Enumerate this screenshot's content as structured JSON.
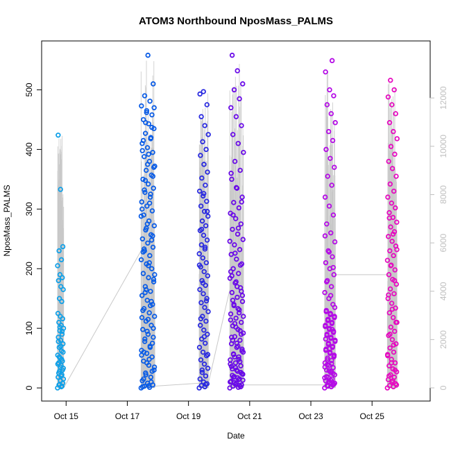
{
  "chart_data": {
    "type": "scatter",
    "title": "ATOM3 Northbound NposMass_PALMS",
    "xlabel": "Date",
    "ylabel": "NposMass_PALMS",
    "x_ticks": [
      "Oct 15",
      "Oct 17",
      "Oct 19",
      "Oct 21",
      "Oct 23",
      "Oct 25"
    ],
    "x_tick_days": [
      15,
      17,
      19,
      21,
      23,
      25
    ],
    "xlim": [
      14.2,
      26.9
    ],
    "ylim": [
      -22,
      582
    ],
    "y_ticks": [
      0,
      100,
      200,
      300,
      400,
      500
    ],
    "y2_ticks": [
      0,
      2000,
      4000,
      6000,
      8000,
      10000,
      12000
    ],
    "y2lim": [
      -545,
      14360
    ],
    "line_color": "#c8c8c8",
    "grid": false,
    "legend": "none",
    "flights": [
      {
        "start": 14.72,
        "end": 14.92,
        "color": "#0fa0e8",
        "max": 424,
        "values": [
          0,
          2,
          5,
          8,
          12,
          18,
          22,
          28,
          33,
          38,
          42,
          45,
          50,
          55,
          62,
          68,
          74,
          80,
          85,
          90,
          96,
          100,
          105,
          110,
          116,
          120,
          125,
          145,
          150,
          165,
          170,
          180,
          185,
          190,
          205,
          215,
          230,
          237,
          333,
          424,
          3,
          6,
          15,
          20,
          25,
          30,
          35,
          40,
          48,
          52,
          60,
          70,
          78,
          95,
          102
        ]
      },
      {
        "start": 17.45,
        "end": 17.9,
        "color": "#0a5ce6",
        "max": 558,
        "values": [
          0,
          1,
          3,
          5,
          8,
          12,
          18,
          25,
          30,
          38,
          45,
          52,
          58,
          63,
          70,
          78,
          85,
          90,
          98,
          105,
          112,
          120,
          126,
          133,
          140,
          147,
          155,
          162,
          170,
          178,
          185,
          192,
          200,
          208,
          215,
          222,
          230,
          236,
          243,
          250,
          257,
          265,
          272,
          280,
          290,
          297,
          305,
          312,
          320,
          328,
          335,
          342,
          350,
          357,
          365,
          372,
          380,
          388,
          395,
          403,
          410,
          418,
          427,
          435,
          443,
          450,
          458,
          465,
          473,
          481,
          490,
          510,
          558,
          2,
          10,
          22,
          35,
          48,
          60,
          75,
          95,
          118,
          138,
          160,
          182,
          205,
          228,
          248,
          268,
          288,
          310,
          332,
          355,
          375,
          398,
          420,
          445,
          470,
          4,
          15,
          28,
          42,
          55,
          68,
          82,
          100,
          115,
          130,
          145,
          165,
          190,
          210,
          233,
          255,
          275,
          300,
          325,
          348,
          370,
          392,
          415,
          437,
          462
        ]
      },
      {
        "start": 19.35,
        "end": 19.65,
        "color": "#2a2ae0",
        "max": 497,
        "values": [
          0,
          2,
          4,
          7,
          10,
          15,
          20,
          26,
          33,
          40,
          47,
          54,
          60,
          68,
          75,
          82,
          90,
          97,
          105,
          112,
          120,
          128,
          135,
          143,
          150,
          158,
          165,
          172,
          180,
          188,
          195,
          203,
          210,
          218,
          225,
          233,
          240,
          248,
          256,
          264,
          272,
          280,
          288,
          296,
          305,
          313,
          322,
          330,
          340,
          352,
          362,
          375,
          390,
          400,
          413,
          425,
          440,
          455,
          475,
          497,
          493,
          6,
          30,
          56,
          86,
          116,
          146,
          176,
          206,
          236,
          266,
          296,
          326
        ]
      },
      {
        "start": 20.35,
        "end": 20.8,
        "color": "#6a0ae8",
        "max": 558,
        "values": [
          0,
          1,
          3,
          5,
          8,
          11,
          15,
          19,
          23,
          28,
          32,
          37,
          42,
          47,
          52,
          57,
          62,
          68,
          74,
          80,
          86,
          92,
          98,
          104,
          110,
          117,
          124,
          131,
          138,
          145,
          152,
          160,
          168,
          176,
          184,
          192,
          200,
          208,
          216,
          224,
          232,
          240,
          249,
          258,
          266,
          275,
          284,
          293,
          302,
          311,
          320,
          335,
          350,
          365,
          380,
          395,
          410,
          425,
          440,
          455,
          470,
          485,
          500,
          510,
          532,
          558,
          2,
          6,
          10,
          14,
          18,
          24,
          30,
          36,
          44,
          52,
          60,
          70,
          80,
          90,
          102,
          114,
          126,
          140,
          155,
          170,
          188,
          206,
          226,
          246,
          268,
          290,
          312,
          336,
          360,
          4,
          9,
          13,
          17,
          21,
          26,
          34,
          40,
          48,
          56,
          65,
          75,
          85,
          96,
          108,
          120,
          133,
          147,
          162,
          178,
          195
        ]
      },
      {
        "start": 23.45,
        "end": 23.8,
        "color": "#b40ae6",
        "max": 549,
        "values": [
          0,
          2,
          4,
          6,
          9,
          12,
          15,
          18,
          22,
          26,
          30,
          34,
          38,
          42,
          46,
          50,
          55,
          60,
          65,
          70,
          75,
          80,
          85,
          90,
          95,
          100,
          105,
          110,
          115,
          120,
          125,
          130,
          140,
          150,
          160,
          170,
          180,
          190,
          200,
          210,
          220,
          230,
          245,
          260,
          275,
          290,
          305,
          320,
          340,
          355,
          370,
          385,
          400,
          415,
          430,
          445,
          460,
          475,
          490,
          500,
          530,
          549,
          3,
          8,
          13,
          19,
          24,
          29,
          35,
          41,
          47,
          53,
          58,
          63,
          68,
          73,
          78,
          83,
          88,
          93,
          98,
          103,
          108,
          113,
          118,
          123,
          128,
          5,
          11,
          17,
          28,
          39,
          52,
          66,
          82,
          98,
          115,
          135,
          155,
          178,
          202,
          228,
          255
        ]
      },
      {
        "start": 25.5,
        "end": 25.82,
        "color": "#e60ac0",
        "max": 516,
        "values": [
          0,
          2,
          4,
          7,
          10,
          14,
          18,
          22,
          27,
          32,
          37,
          42,
          48,
          54,
          60,
          67,
          74,
          81,
          88,
          95,
          102,
          110,
          118,
          126,
          134,
          142,
          150,
          158,
          166,
          174,
          182,
          190,
          198,
          206,
          214,
          222,
          230,
          238,
          246,
          254,
          262,
          270,
          278,
          286,
          294,
          302,
          310,
          320,
          330,
          342,
          355,
          368,
          380,
          392,
          405,
          418,
          430,
          445,
          460,
          475,
          488,
          500,
          516,
          5,
          12,
          20,
          30,
          42,
          56,
          72,
          90,
          110,
          132,
          156,
          180,
          205,
          232,
          258,
          285
        ]
      }
    ],
    "connectors": [
      {
        "x": [
          14.92,
          17.45
        ],
        "y": [
          0,
          230
        ]
      },
      {
        "x": [
          17.9,
          19.35
        ],
        "y": [
          3,
          8
        ]
      },
      {
        "x": [
          19.65,
          20.35
        ],
        "y": [
          8,
          165
        ]
      },
      {
        "x": [
          20.8,
          23.45
        ],
        "y": [
          5,
          5
        ]
      },
      {
        "x": [
          23.8,
          25.5
        ],
        "y": [
          190,
          190
        ]
      }
    ]
  }
}
